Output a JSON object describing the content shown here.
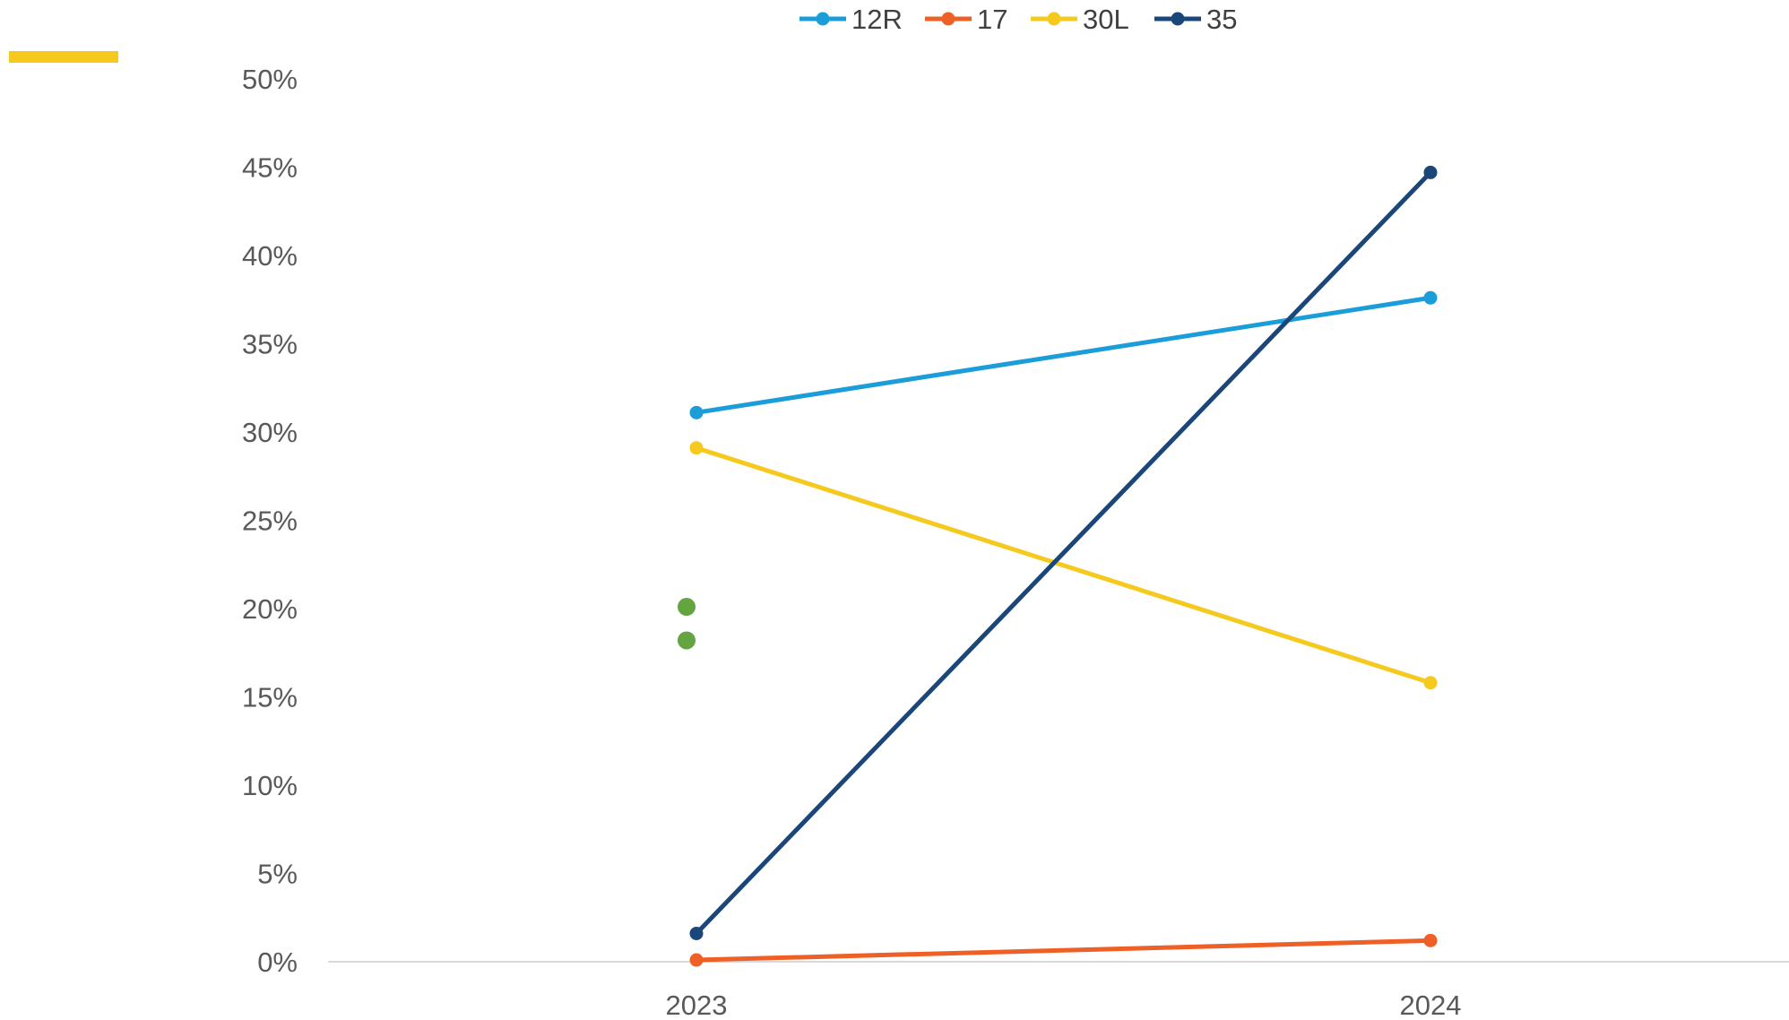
{
  "chart_data": {
    "type": "line",
    "categories": [
      "2023",
      "2024"
    ],
    "ylim": [
      0,
      0.5
    ],
    "y_ticks": [
      "0%",
      "5%",
      "10%",
      "15%",
      "20%",
      "25%",
      "30%",
      "35%",
      "40%",
      "45%",
      "50%"
    ],
    "grid": false,
    "legend_position": "top",
    "series": [
      {
        "name": "12R",
        "values": [
          0.311,
          0.376
        ],
        "color": "#1A9DD9"
      },
      {
        "name": "17",
        "values": [
          0.001,
          0.012
        ],
        "color": "#EE6026"
      },
      {
        "name": "30L",
        "values": [
          0.291,
          0.158
        ],
        "color": "#F6C91E"
      },
      {
        "name": "35",
        "values": [
          0.016,
          0.447
        ],
        "color": "#1B4679"
      }
    ],
    "extra_points": [
      {
        "x": "2023",
        "y": 0.201,
        "color": "#64A441"
      },
      {
        "x": "2023",
        "y": 0.182,
        "color": "#64A441"
      }
    ],
    "corner_mark_color": "#F6C91E",
    "axis_color": "#D9D9D9"
  }
}
